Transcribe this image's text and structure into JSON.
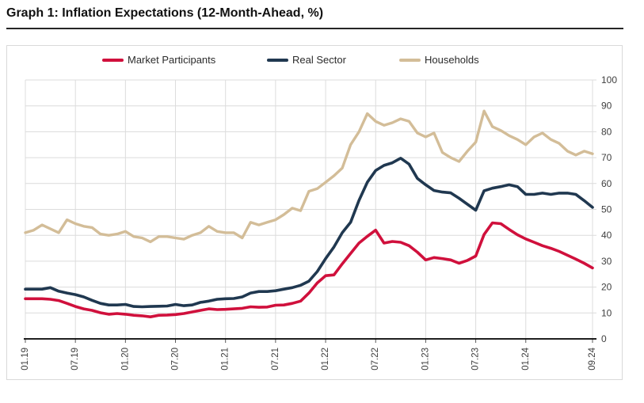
{
  "page": {
    "title": "Graph 1: Inflation Expectations (12-Month-Ahead, %)"
  },
  "legend": [
    {
      "label": "Market Participants",
      "color": "#d0103c"
    },
    {
      "label": "Real Sector",
      "color": "#203850"
    },
    {
      "label": "Households",
      "color": "#d3bd98"
    }
  ],
  "chart_data": {
    "type": "line",
    "title": "Graph 1: Inflation Expectations (12-Month-Ahead, %)",
    "x_description": "Monthly observations from 01.19 to 09.24 (69 points)",
    "months": 69,
    "x_tick_labels": [
      "01.19",
      "07.19",
      "01.20",
      "07.20",
      "01.21",
      "07.21",
      "01.22",
      "07.22",
      "01.23",
      "07.23",
      "01.24",
      "09.24"
    ],
    "x_tick_month_index": [
      0,
      6,
      12,
      18,
      24,
      30,
      36,
      42,
      48,
      54,
      60,
      68
    ],
    "y_ticks": [
      0,
      10,
      20,
      30,
      40,
      50,
      60,
      70,
      80,
      90,
      100
    ],
    "ylim": [
      0,
      100
    ],
    "grid": true,
    "legend_position": "top",
    "colors": {
      "grid": "#dcdcdc",
      "axis": "#000000",
      "tick_label": "#404040",
      "tick_mark": "#595959"
    },
    "series": [
      {
        "name": "Households",
        "color": "#d3bd98",
        "stroke_width": 3.4,
        "values": [
          41,
          42,
          44,
          42.5,
          41,
          46,
          44.5,
          43.5,
          43,
          40.5,
          40,
          40.5,
          41.5,
          39.5,
          39,
          37.5,
          39.5,
          39.5,
          39,
          38.5,
          40,
          41,
          43.5,
          41.5,
          41,
          41,
          39,
          45,
          44,
          45,
          46,
          48,
          50.5,
          49.5,
          57,
          58,
          60.5,
          63,
          66,
          75,
          80,
          87,
          84,
          82.5,
          83.5,
          85,
          84,
          79.5,
          78,
          79.5,
          72,
          70,
          68.5,
          72.5,
          76,
          88,
          82,
          80.5,
          78.5,
          77,
          75,
          78,
          79.5,
          77,
          75.5,
          72.5,
          71,
          72.5,
          71.5
        ]
      },
      {
        "name": "Real Sector",
        "color": "#203850",
        "stroke_width": 3.6,
        "values": [
          19.2,
          19.2,
          19.2,
          19.8,
          18.4,
          17.7,
          17.1,
          16.2,
          14.9,
          13.7,
          13.1,
          13.1,
          13.3,
          12.5,
          12.4,
          12.5,
          12.6,
          12.7,
          13.3,
          12.8,
          13.1,
          14.1,
          14.6,
          15.3,
          15.5,
          15.6,
          16.2,
          17.7,
          18.3,
          18.3,
          18.6,
          19.2,
          19.8,
          20.7,
          22.3,
          26,
          31,
          35.5,
          41,
          45,
          53.5,
          60.5,
          65,
          67,
          68,
          69.8,
          67.5,
          62,
          59.5,
          57.3,
          56.7,
          56.4,
          54.3,
          52,
          49.7,
          57.2,
          58.2,
          58.8,
          59.5,
          58.8,
          55.8,
          55.8,
          56.3,
          55.8,
          56.3,
          56.3,
          55.8,
          53.4,
          50.8
        ]
      },
      {
        "name": "Market Participants",
        "color": "#d0103c",
        "stroke_width": 3.6,
        "values": [
          15.5,
          15.5,
          15.5,
          15.3,
          14.8,
          13.7,
          12.5,
          11.6,
          11,
          10.1,
          9.5,
          9.8,
          9.5,
          9.1,
          8.9,
          8.5,
          9.1,
          9.2,
          9.4,
          9.8,
          10.4,
          11,
          11.6,
          11.3,
          11.4,
          11.6,
          11.8,
          12.4,
          12.2,
          12.3,
          13,
          13.1,
          13.7,
          14.6,
          17.7,
          21.6,
          24.4,
          24.7,
          29,
          33,
          37,
          39.6,
          42,
          37,
          37.6,
          37.3,
          36,
          33.5,
          30.5,
          31.4,
          31,
          30.5,
          29.2,
          30.3,
          32,
          40.3,
          44.8,
          44.5,
          42.3,
          40.2,
          38.6,
          37.3,
          36,
          35,
          33.8,
          32.3,
          30.8,
          29.2,
          27.4
        ]
      }
    ]
  }
}
